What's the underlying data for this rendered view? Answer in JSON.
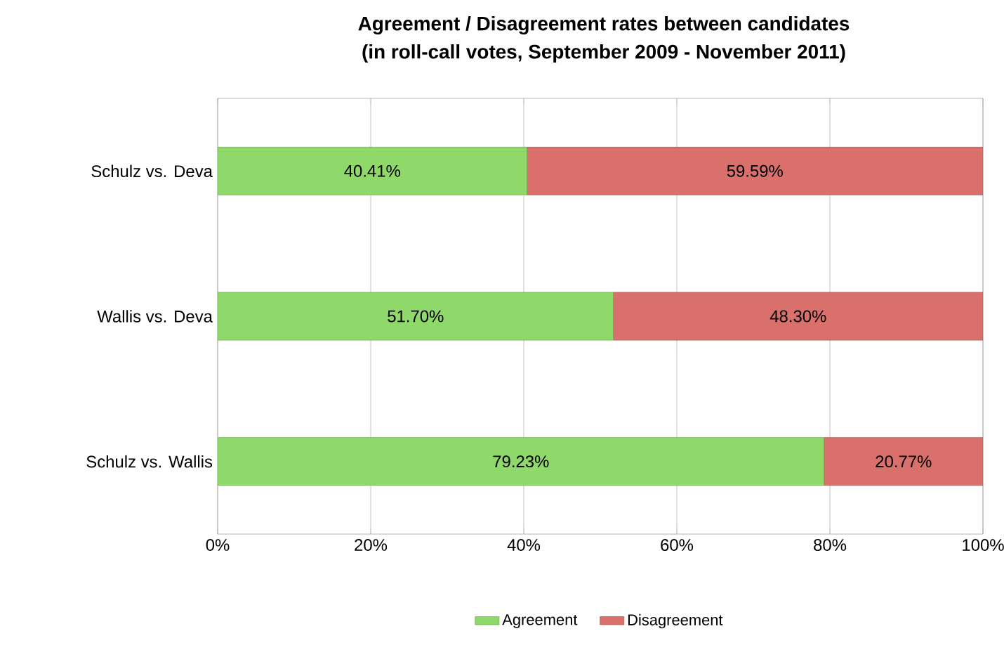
{
  "chart_data": {
    "type": "bar",
    "orientation": "horizontal",
    "stacked": true,
    "title": "Agreement / Disagreement rates between candidates",
    "subtitle": "(in roll-call votes, September 2009 - November 2011)",
    "categories": [
      "Schulz vs. Deva",
      "Wallis vs. Deva",
      "Schulz vs. Wallis"
    ],
    "series": [
      {
        "name": "Agreement",
        "color": "#8fd86a",
        "values": [
          40.41,
          51.7,
          79.23
        ],
        "value_labels": [
          "40.41%",
          "51.70%",
          "79.23%"
        ]
      },
      {
        "name": "Disagreement",
        "color": "#d9706b",
        "values": [
          59.59,
          48.3,
          20.77
        ],
        "value_labels": [
          "59.59%",
          "48.30%",
          "20.77%"
        ]
      }
    ],
    "xlim": [
      0,
      100
    ],
    "xticks": [
      {
        "value": 0,
        "label": "0%"
      },
      {
        "value": 20,
        "label": "20%"
      },
      {
        "value": 40,
        "label": "40%"
      },
      {
        "value": 60,
        "label": "60%"
      },
      {
        "value": 80,
        "label": "80%"
      },
      {
        "value": 100,
        "label": "100%"
      }
    ],
    "grid": "x",
    "legend": "bottom"
  }
}
